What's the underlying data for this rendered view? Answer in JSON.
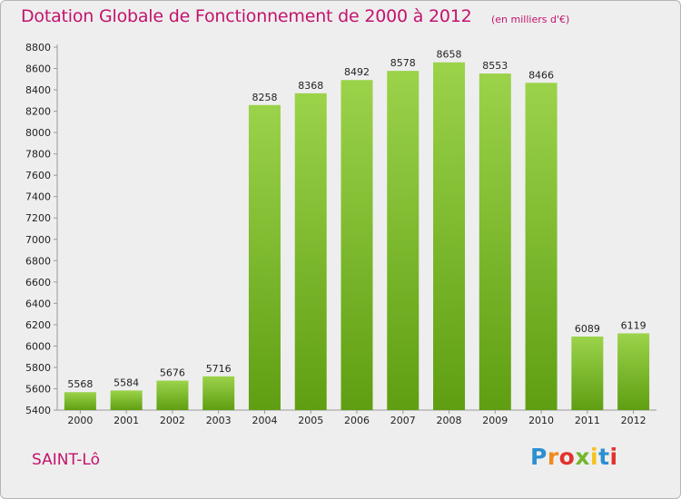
{
  "chart_data": {
    "type": "bar",
    "title": "Dotation Globale de Fonctionnement de 2000 à 2012",
    "subtitle": "(en milliers d'€)",
    "categories": [
      "2000",
      "2001",
      "2002",
      "2003",
      "2004",
      "2005",
      "2006",
      "2007",
      "2008",
      "2009",
      "2010",
      "2011",
      "2012"
    ],
    "values": [
      5568,
      5584,
      5676,
      5716,
      8258,
      8368,
      8492,
      8578,
      8658,
      8553,
      8466,
      6089,
      6119
    ],
    "value_labels": [
      "5568",
      "5584",
      "5676",
      "5716",
      "8258",
      "8368",
      "8492",
      "8578",
      "8658",
      "8553",
      "8466",
      "6089",
      "6119"
    ],
    "ylim": [
      5400,
      8800
    ],
    "yticks": [
      5400,
      5600,
      5800,
      6000,
      6200,
      6400,
      6600,
      6800,
      7000,
      7200,
      7400,
      7600,
      7800,
      8000,
      8200,
      8400,
      8600,
      8800
    ],
    "grid": false,
    "colors": {
      "bar_light": "#9bd34a",
      "bar_dark": "#5f9e12",
      "text_accent": "#c3136d"
    }
  },
  "footer": {
    "city": "SAINT-Lô",
    "logo_letters": [
      "P",
      "r",
      "o",
      "x",
      "i",
      "t",
      "i"
    ],
    "logo_colors": [
      "#2d8fd0",
      "#f08a1c",
      "#e2322d",
      "#73b72b",
      "#f6c21c",
      "#2d8fd0",
      "#e2322d"
    ]
  }
}
